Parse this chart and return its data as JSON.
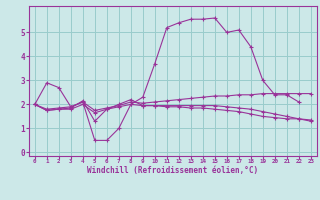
{
  "x": [
    0,
    1,
    2,
    3,
    4,
    5,
    6,
    7,
    8,
    9,
    10,
    11,
    12,
    13,
    14,
    15,
    16,
    17,
    18,
    19,
    20,
    21,
    22,
    23
  ],
  "line1": [
    2.0,
    2.9,
    2.7,
    1.9,
    2.1,
    0.5,
    0.5,
    1.0,
    2.0,
    2.3,
    3.7,
    5.2,
    5.4,
    5.55,
    5.55,
    5.6,
    5.0,
    5.1,
    4.4,
    3.0,
    2.4,
    2.4,
    2.1,
    null
  ],
  "line2": [
    2.0,
    1.75,
    1.8,
    1.85,
    2.15,
    1.3,
    1.8,
    2.0,
    2.2,
    1.95,
    1.95,
    1.9,
    1.9,
    1.85,
    1.85,
    1.8,
    1.75,
    1.7,
    1.6,
    1.5,
    1.45,
    1.4,
    1.4,
    1.35
  ],
  "line3": [
    2.0,
    1.8,
    1.85,
    1.9,
    2.1,
    1.75,
    1.85,
    1.95,
    2.1,
    2.05,
    2.1,
    2.15,
    2.2,
    2.25,
    2.3,
    2.35,
    2.35,
    2.4,
    2.4,
    2.45,
    2.45,
    2.45,
    2.45,
    2.45
  ],
  "line4": [
    2.0,
    1.75,
    1.8,
    1.8,
    2.0,
    1.65,
    1.8,
    1.9,
    2.0,
    1.95,
    1.95,
    1.95,
    1.95,
    1.95,
    1.95,
    1.95,
    1.9,
    1.85,
    1.8,
    1.7,
    1.6,
    1.5,
    1.4,
    1.3
  ],
  "color": "#993399",
  "bg_color": "#cce8e8",
  "grid_color": "#99cccc",
  "xlabel": "Windchill (Refroidissement éolien,°C)",
  "ylim": [
    -0.15,
    6.1
  ],
  "xlim": [
    -0.5,
    23.5
  ],
  "yticks": [
    0,
    1,
    2,
    3,
    4,
    5
  ],
  "xticks": [
    0,
    1,
    2,
    3,
    4,
    5,
    6,
    7,
    8,
    9,
    10,
    11,
    12,
    13,
    14,
    15,
    16,
    17,
    18,
    19,
    20,
    21,
    22,
    23
  ]
}
